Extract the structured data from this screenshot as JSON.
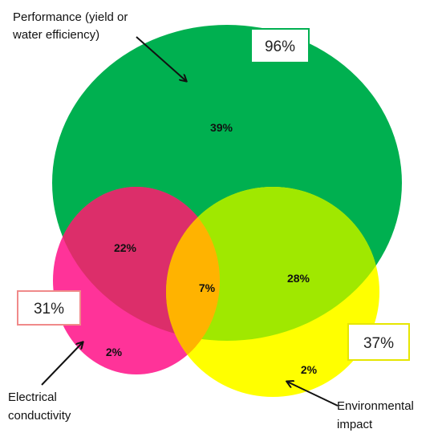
{
  "sets": {
    "performance": {
      "caption_lines": [
        "Performance (yield or",
        "water efficiency)"
      ],
      "total": "96%",
      "color": "#00b050",
      "box_border": "#00b050"
    },
    "electrical": {
      "caption_lines": [
        "Electrical",
        "conductivity"
      ],
      "total": "31%",
      "color": "#ff3399",
      "box_border": "#f08a8a"
    },
    "environmental": {
      "caption_lines": [
        "Environmental",
        "impact"
      ],
      "total": "37%",
      "color": "#ffff00",
      "box_border": "#e6e600"
    }
  },
  "regions": {
    "performance_only": "39%",
    "performance_electrical": "22%",
    "all_three": "7%",
    "performance_environmental": "28%",
    "electrical_only": "2%",
    "environmental_only": "2%"
  },
  "region_colors": {
    "performance_electrical": "#dc2e6a",
    "performance_environmental": "#a0e800",
    "all_three": "#ffb300"
  }
}
